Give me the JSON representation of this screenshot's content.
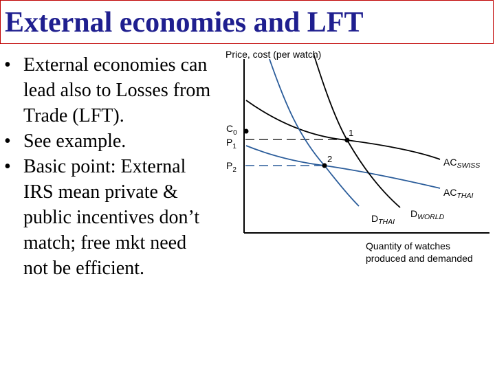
{
  "slide": {
    "title": "External economies and LFT",
    "bullets": [
      "External economies can lead also to Losses from Trade (LFT).",
      "See example.",
      "Basic point: External IRS mean private & public incentives don’t match; free mkt need not be efficient."
    ]
  },
  "diagram": {
    "y_axis_label": "Price, cost (per watch)",
    "x_axis_label_line1": "Quantity of watches",
    "x_axis_label_line2": "produced and demanded",
    "c0": {
      "main": "C",
      "sub": "0"
    },
    "p1": {
      "main": "P",
      "sub": "1"
    },
    "p2": {
      "main": "P",
      "sub": "2"
    },
    "point1": "1",
    "point2": "2",
    "ac_swiss": {
      "main": "AC",
      "sub": "SWISS"
    },
    "ac_thai": {
      "main": "AC",
      "sub": "THAI"
    },
    "d_thai": {
      "main": "D",
      "sub": "THAI"
    },
    "d_world": {
      "main": "D",
      "sub": "WORLD"
    },
    "colors": {
      "black_curves": "#000000",
      "blue_curves": "#2a5c9a"
    }
  }
}
